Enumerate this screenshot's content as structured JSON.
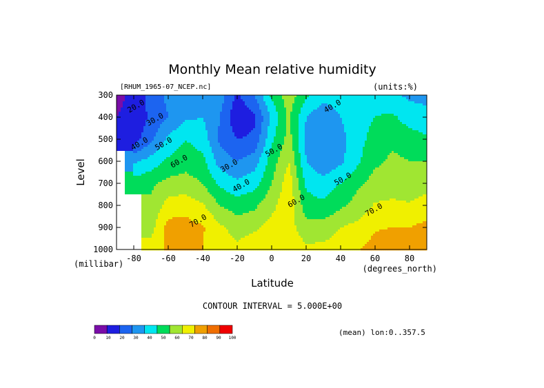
{
  "chart_data": {
    "type": "contour",
    "title": "Monthly Mean relative humidity",
    "file_label": "[RHUM_1965-07_NCEP.nc]",
    "units_label": "(units:%)",
    "xlabel": "Latitude",
    "x_units": "(degrees_north)",
    "ylabel": "Level",
    "y_units": "(millibar)",
    "contour_interval_text": "CONTOUR INTERVAL = 5.000E+00",
    "mean_text": "(mean) lon:0..357.5",
    "xlim": [
      -90,
      90
    ],
    "ylim": [
      1000,
      300
    ],
    "x_ticks": [
      -80,
      -60,
      -40,
      -20,
      0,
      20,
      40,
      60,
      80
    ],
    "x_tick_labels": [
      "-80",
      "-60",
      "-40",
      "-20",
      "0",
      "20",
      "40",
      "60",
      "80"
    ],
    "y_ticks": [
      300,
      400,
      500,
      600,
      700,
      800,
      900,
      1000
    ],
    "y_tick_labels": [
      "300",
      "400",
      "500",
      "600",
      "700",
      "800",
      "900",
      "1000"
    ],
    "latitude": [
      -90,
      -80,
      -70,
      -60,
      -50,
      -40,
      -30,
      -20,
      -10,
      0,
      10,
      20,
      30,
      40,
      50,
      60,
      70,
      80,
      90
    ],
    "levels_mb": [
      1000,
      900,
      800,
      700,
      600,
      500,
      400,
      300
    ],
    "values": [
      [
        null,
        null,
        75,
        82,
        84,
        80,
        75,
        72,
        77,
        80,
        78,
        72,
        73,
        76,
        79,
        84,
        85,
        86,
        88
      ],
      [
        null,
        null,
        66,
        84,
        84,
        81,
        72,
        66,
        68,
        74,
        74,
        64,
        64,
        70,
        73,
        79,
        80,
        80,
        83
      ],
      [
        null,
        null,
        62,
        74,
        76,
        71,
        60,
        55,
        58,
        67,
        77,
        54,
        52,
        58,
        64,
        71,
        72,
        71,
        74
      ],
      [
        null,
        55,
        58,
        63,
        64,
        60,
        48,
        42,
        46,
        60,
        76,
        48,
        44,
        50,
        58,
        64,
        65,
        64,
        67
      ],
      [
        null,
        38,
        44,
        52,
        56,
        53,
        35,
        30,
        35,
        55,
        70,
        40,
        32,
        38,
        48,
        58,
        62,
        60,
        60
      ],
      [
        10,
        15,
        28,
        42,
        50,
        45,
        28,
        20,
        22,
        48,
        64,
        38,
        30,
        36,
        48,
        52,
        58,
        55,
        52
      ],
      [
        10,
        12,
        22,
        30,
        38,
        40,
        30,
        12,
        18,
        42,
        62,
        40,
        32,
        40,
        48,
        50,
        52,
        45,
        42
      ],
      [
        8,
        12,
        25,
        32,
        36,
        38,
        35,
        18,
        30,
        52,
        66,
        52,
        44,
        46,
        48,
        46,
        42,
        38,
        38
      ]
    ],
    "contour_labels": [
      {
        "text": "20.0",
        "lat": -78,
        "lev": 360
      },
      {
        "text": "30.0",
        "lat": -67,
        "lev": 420
      },
      {
        "text": "40.0",
        "lat": -76,
        "lev": 530
      },
      {
        "text": "50.0",
        "lat": -62,
        "lev": 530
      },
      {
        "text": "60.0",
        "lat": -53,
        "lev": 610
      },
      {
        "text": "70.0",
        "lat": -42,
        "lev": 880
      },
      {
        "text": "30.0",
        "lat": -24,
        "lev": 630
      },
      {
        "text": "40.0",
        "lat": -17,
        "lev": 720
      },
      {
        "text": "50.0",
        "lat": 2,
        "lev": 560
      },
      {
        "text": "60.0",
        "lat": 15,
        "lev": 790
      },
      {
        "text": "40.0",
        "lat": 36,
        "lev": 360
      },
      {
        "text": "50.0",
        "lat": 42,
        "lev": 690
      },
      {
        "text": "70.0",
        "lat": 60,
        "lev": 830
      }
    ],
    "colorbar": {
      "levels": [
        0,
        10,
        20,
        30,
        40,
        50,
        60,
        70,
        80,
        90,
        100
      ],
      "tick_labels": [
        "0",
        "10",
        "20",
        "30",
        "40",
        "50",
        "60",
        "70",
        "80",
        "90",
        "100"
      ],
      "colors": [
        "#7a0da8",
        "#1e1ee0",
        "#1c64f0",
        "#1e96f0",
        "#00e6f0",
        "#00dc5a",
        "#a0e632",
        "#f0f000",
        "#f0a000",
        "#f06e00",
        "#f00000"
      ]
    }
  }
}
